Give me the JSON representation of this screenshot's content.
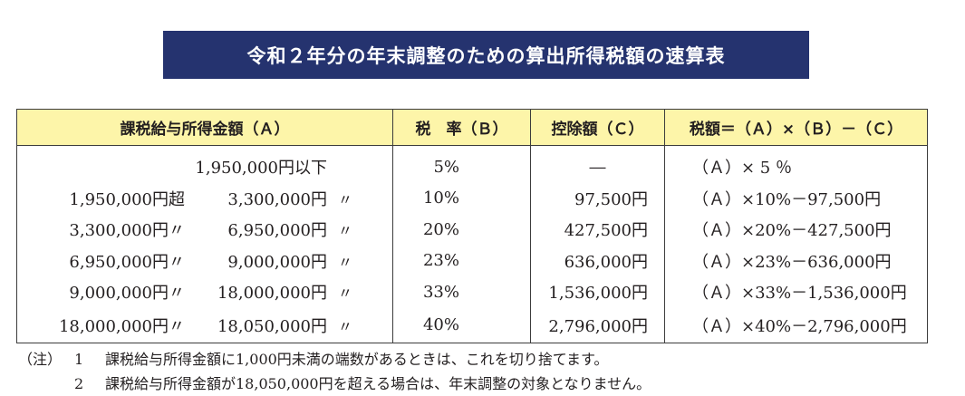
{
  "title": "令和２年分の年末調整のための算出所得税額の速算表",
  "headers": {
    "income": "課税給与所得金額（Ａ）",
    "rate": "税　率（Ｂ）",
    "deduction": "控除額（Ｃ）",
    "tax": "税額＝（Ａ）×（Ｂ）－（Ｃ）"
  },
  "rows": [
    {
      "from": "",
      "to": "1,950,000円以下",
      "to_mark": "",
      "rate": "5%",
      "deduction": "―",
      "formula": "（Ａ）× 5 ％"
    },
    {
      "from": "1,950,000円超",
      "to": "3,300,000円",
      "to_mark": "〃",
      "rate": "10%",
      "deduction": "97,500円",
      "formula": "（Ａ）×10%－97,500円"
    },
    {
      "from": "3,300,000円〃",
      "to": "6,950,000円",
      "to_mark": "〃",
      "rate": "20%",
      "deduction": "427,500円",
      "formula": "（Ａ）×20%－427,500円"
    },
    {
      "from": "6,950,000円〃",
      "to": "9,000,000円",
      "to_mark": "〃",
      "rate": "23%",
      "deduction": "636,000円",
      "formula": "（Ａ）×23%－636,000円"
    },
    {
      "from": "9,000,000円〃",
      "to": "18,000,000円",
      "to_mark": "〃",
      "rate": "33%",
      "deduction": "1,536,000円",
      "formula": "（Ａ）×33%－1,536,000円"
    },
    {
      "from": "18,000,000円〃",
      "to": "18,050,000円",
      "to_mark": "〃",
      "rate": "40%",
      "deduction": "2,796,000円",
      "formula": "（Ａ）×40%－2,796,000円"
    }
  ],
  "notes": {
    "mark": "（注）",
    "items": [
      {
        "num": "1",
        "text": "課税給与所得金額に1,000円未満の端数があるときは、これを切り捨てます。"
      },
      {
        "num": "2",
        "text": "課税給与所得金額が18,050,000円を超える場合は、年末調整の対象となりません。"
      }
    ]
  }
}
